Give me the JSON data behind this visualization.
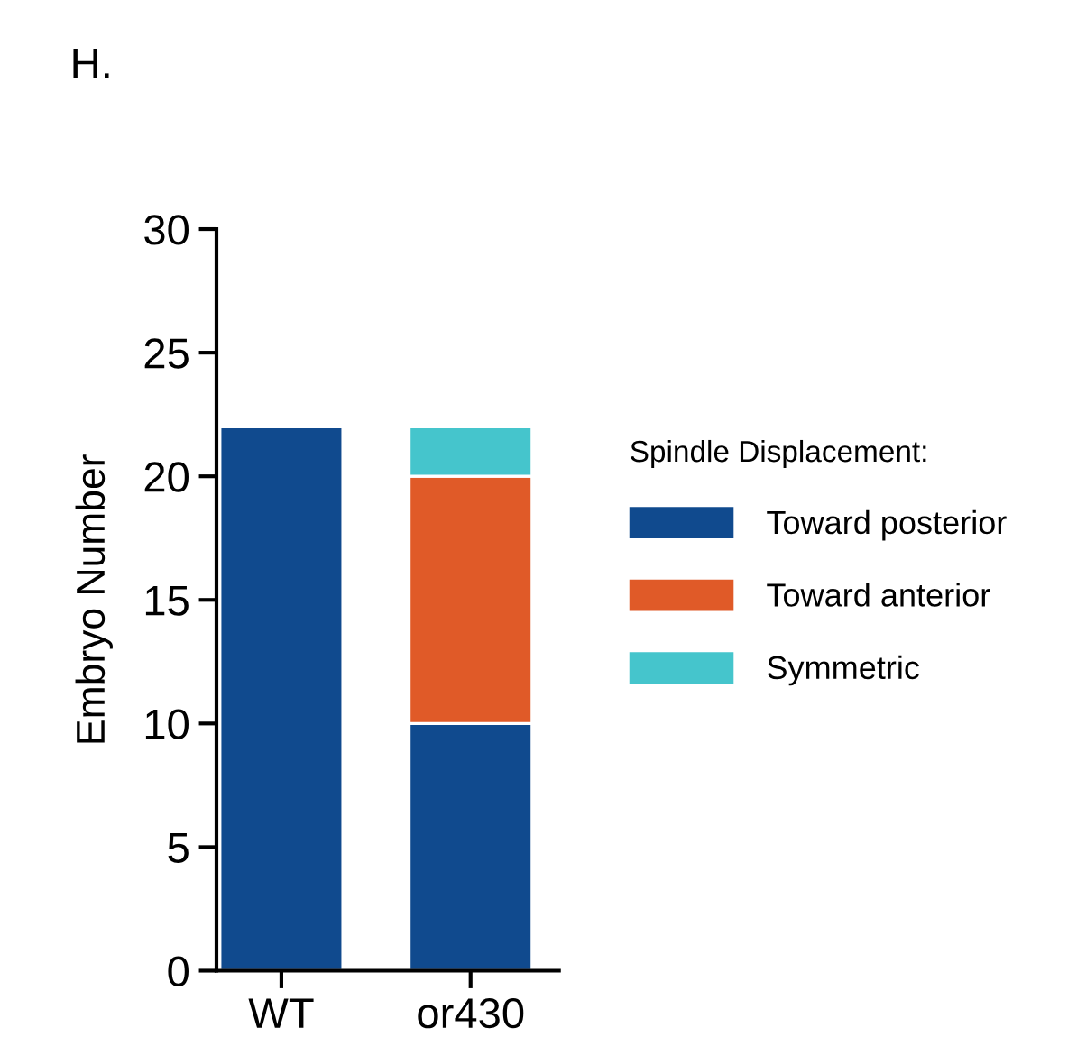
{
  "chart_data": {
    "type": "bar",
    "stacked": true,
    "ylabel": "Embryo Number",
    "legend_title": "Spindle Displacement:",
    "annotations": [
      "H."
    ],
    "categories": [
      "WT",
      "or430"
    ],
    "series": [
      {
        "name": "Toward posterior",
        "color": "#104a8e",
        "values": [
          22,
          10
        ]
      },
      {
        "name": "Toward anterior",
        "color": "#e05a28",
        "values": [
          0,
          10
        ]
      },
      {
        "name": "Symmetric",
        "color": "#45c5cc",
        "values": [
          0,
          2
        ]
      }
    ],
    "ylim": [
      0,
      30
    ],
    "yticks": [
      0,
      5,
      10,
      15,
      20,
      25,
      30
    ],
    "grid": false,
    "legend": "right"
  }
}
